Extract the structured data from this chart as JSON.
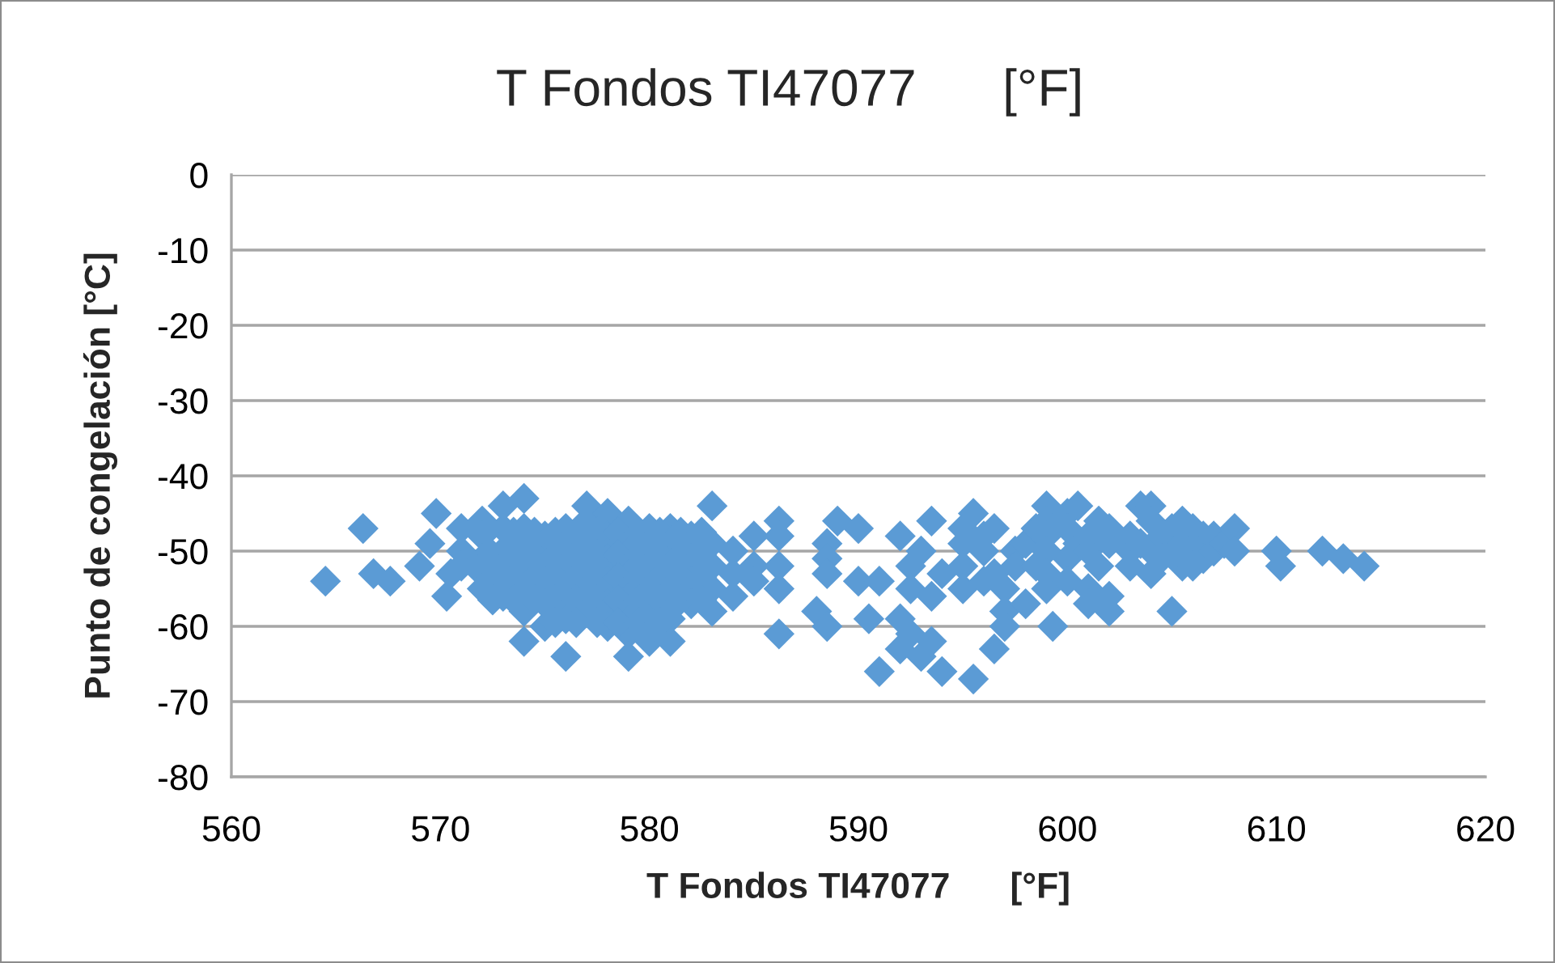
{
  "chart_data": {
    "type": "scatter",
    "title": "T Fondos TI47077      [°F]",
    "xlabel": "T Fondos TI47077      [°F]",
    "ylabel": "Punto de congelación [°C]",
    "xlim": [
      560,
      620
    ],
    "xticks": [
      560,
      570,
      580,
      590,
      600,
      610,
      620
    ],
    "ylim": [
      -80,
      0
    ],
    "yticks": [
      -80,
      -70,
      -60,
      -50,
      -40,
      -30,
      -20,
      -10,
      0
    ],
    "grid": "y",
    "marker": "diamond",
    "series": [
      {
        "color": "#5b9bd5",
        "x": [
          564.5,
          566.3,
          566.8,
          567.6,
          569,
          569.5,
          569.8,
          570.3,
          570.5,
          571,
          571,
          571,
          572,
          572,
          572,
          572,
          572,
          573,
          573,
          573,
          573,
          573,
          574,
          574,
          574,
          574,
          574,
          574,
          574,
          575,
          575,
          575,
          575,
          575,
          576,
          576,
          576,
          576,
          576,
          576,
          577,
          577,
          577,
          577,
          577,
          577,
          578,
          578,
          578,
          578,
          578,
          578,
          579,
          579,
          579,
          579,
          579,
          579,
          579,
          580,
          580,
          580,
          580,
          580,
          580,
          581,
          581,
          581,
          581,
          581,
          581,
          582,
          582,
          582,
          582,
          583,
          583,
          583,
          583,
          583,
          584,
          584,
          584,
          585,
          585,
          585,
          586.2,
          586.2,
          586.2,
          586.2,
          586.2,
          588,
          588.5,
          588.5,
          588.5,
          588.5,
          589,
          590,
          590,
          590.5,
          591,
          591,
          592,
          592,
          592,
          592.5,
          592.5,
          592.5,
          593,
          593,
          593.5,
          593.5,
          593.5,
          594,
          594,
          595,
          595,
          595,
          595,
          595.5,
          595.5,
          596,
          596,
          596,
          596.5,
          596.5,
          596.5,
          597,
          597,
          597,
          597.5,
          597.5,
          598,
          598,
          598.5,
          598.5,
          599,
          599,
          599,
          599,
          599,
          599,
          599.3,
          600,
          600,
          600,
          600,
          600.5,
          600.5,
          601,
          601,
          601,
          601,
          601.5,
          601.5,
          602,
          602,
          602,
          602,
          603,
          603,
          603,
          603.5,
          603.5,
          604,
          604,
          604,
          604,
          604.5,
          604.5,
          605,
          605,
          605,
          605.5,
          605.5,
          605.5,
          606,
          606,
          606,
          606.5,
          606.5,
          607,
          607,
          607.5,
          608,
          608,
          610,
          610.2,
          612.2,
          613.2,
          614.2,
          572.5,
          572.5,
          572.5,
          573.5,
          573.5,
          573.5,
          573.5,
          574.5,
          574.5,
          574.5,
          574.5,
          575.5,
          575.5,
          575.5,
          575.5,
          575.5,
          576.5,
          576.5,
          576.5,
          576.5,
          576.5,
          577.5,
          577.5,
          577.5,
          577.5,
          577.5,
          578.5,
          578.5,
          578.5,
          578.5,
          578.5,
          579.5,
          579.5,
          579.5,
          579.5,
          579.5,
          580.5,
          580.5,
          580.5,
          580.5,
          580.5,
          581.5,
          581.5,
          581.5,
          581.5,
          582.5,
          582.5,
          582.5,
          582.5
        ],
        "values": [
          -54,
          -47,
          -53,
          -54,
          -52,
          -49,
          -45,
          -56,
          -53,
          -47,
          -50,
          -52,
          -46,
          -48,
          -51,
          -53,
          -55,
          -44,
          -47,
          -50,
          -53,
          -56,
          -43,
          -47,
          -49,
          -52,
          -55,
          -58,
          -62,
          -48,
          -51,
          -54,
          -57,
          -60,
          -47,
          -50,
          -53,
          -56,
          -59,
          -64,
          -44,
          -46,
          -49,
          -52,
          -55,
          -58,
          -45,
          -48,
          -51,
          -54,
          -57,
          -60,
          -46,
          -49,
          -52,
          -55,
          -58,
          -61,
          -64,
          -47,
          -50,
          -53,
          -56,
          -59,
          -62,
          -47,
          -50,
          -53,
          -56,
          -59,
          -62,
          -48,
          -51,
          -54,
          -57,
          -44,
          -49,
          -52,
          -55,
          -58,
          -50,
          -53,
          -56,
          -48,
          -52,
          -54,
          -46,
          -48,
          -52,
          -55,
          -61,
          -58,
          -49,
          -51,
          -53,
          -60,
          -46,
          -47,
          -54,
          -59,
          -54,
          -66,
          -48,
          -59,
          -63,
          -52,
          -55,
          -61,
          -50,
          -64,
          -46,
          -56,
          -62,
          -53,
          -66,
          -47,
          -49,
          -52,
          -55,
          -45,
          -67,
          -48,
          -50,
          -54,
          -47,
          -53,
          -63,
          -55,
          -58,
          -60,
          -50,
          -52,
          -49,
          -57,
          -47,
          -52,
          -44,
          -46,
          -48,
          -50,
          -53,
          -55,
          -60,
          -45,
          -47,
          -51,
          -54,
          -44,
          -49,
          -48,
          -50,
          -55,
          -57,
          -46,
          -52,
          -47,
          -49,
          -56,
          -58,
          -48,
          -50,
          -52,
          -44,
          -49,
          -44,
          -46,
          -50,
          -53,
          -48,
          -51,
          -47,
          -50,
          -58,
          -46,
          -49,
          -52,
          -47,
          -50,
          -52,
          -48,
          -51,
          -48,
          -50,
          -49,
          -47,
          -50,
          -50,
          -52,
          -50,
          -51,
          -52,
          -50.5,
          -53.5,
          -56.5,
          -47.5,
          -50.5,
          -53.5,
          -56.5,
          -47.5,
          -50.5,
          -53.5,
          -56.5,
          -47.5,
          -50.5,
          -53.5,
          -56.5,
          -59.5,
          -47.5,
          -50.5,
          -53.5,
          -56.5,
          -59.5,
          -47.5,
          -50.5,
          -53.5,
          -56.5,
          -59.5,
          -47.5,
          -50.5,
          -53.5,
          -56.5,
          -59.5,
          -47.5,
          -50.5,
          -53.5,
          -56.5,
          -59.5,
          -47.5,
          -50.5,
          -53.5,
          -56.5,
          -59.5,
          -47.5,
          -50.5,
          -53.5,
          -56.5,
          -47.5,
          -50.5,
          -53.5,
          -56.5
        ]
      }
    ]
  }
}
